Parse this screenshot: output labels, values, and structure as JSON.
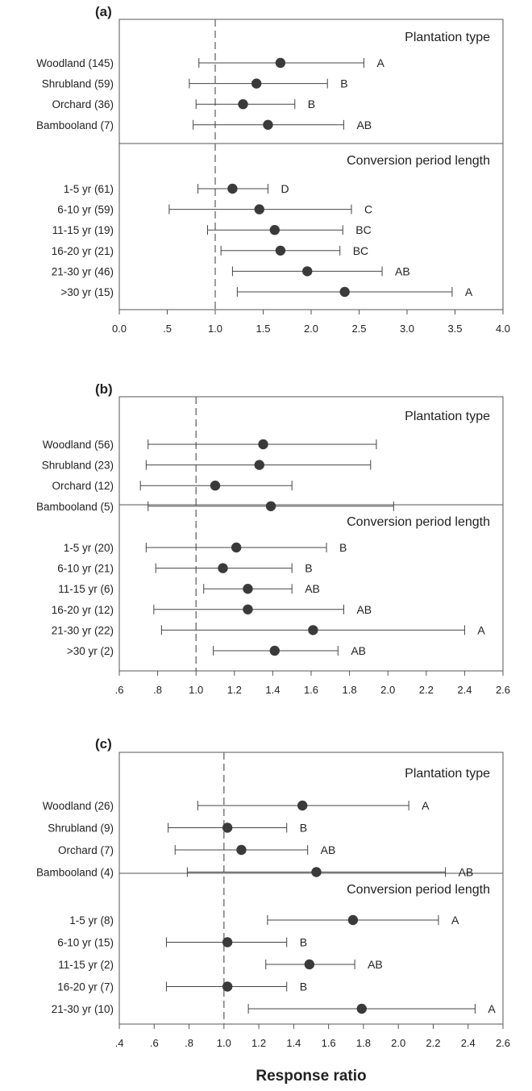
{
  "chart_data": [
    {
      "type": "scatter",
      "panel_label": "(a)",
      "xlim": [
        0.0,
        4.0
      ],
      "x_ticks": [
        "0.0",
        ".5",
        "1.0",
        "1.5",
        "2.0",
        "2.5",
        "3.0",
        "3.5",
        "4.0"
      ],
      "x_tick_values": [
        0.0,
        0.5,
        1.0,
        1.5,
        2.0,
        2.5,
        3.0,
        3.5,
        4.0
      ],
      "reference_line": 1.0,
      "groups": [
        {
          "title": "Plantation type",
          "items": [
            {
              "label": "Woodland (145)",
              "mean": 1.68,
              "lo": 0.83,
              "hi": 2.55,
              "letter": "A"
            },
            {
              "label": "Shrubland (59)",
              "mean": 1.43,
              "lo": 0.73,
              "hi": 2.17,
              "letter": "B"
            },
            {
              "label": "Orchard (36)",
              "mean": 1.29,
              "lo": 0.8,
              "hi": 1.83,
              "letter": "B"
            },
            {
              "label": "Bambooland (7)",
              "mean": 1.55,
              "lo": 0.77,
              "hi": 2.34,
              "letter": "AB"
            }
          ]
        },
        {
          "title": "Conversion period length",
          "items": [
            {
              "label": "1-5 yr (61)",
              "mean": 1.18,
              "lo": 0.82,
              "hi": 1.55,
              "letter": "D"
            },
            {
              "label": "6-10 yr (59)",
              "mean": 1.46,
              "lo": 0.52,
              "hi": 2.42,
              "letter": "C"
            },
            {
              "label": "11-15 yr (19)",
              "mean": 1.62,
              "lo": 0.92,
              "hi": 2.33,
              "letter": "BC"
            },
            {
              "label": "16-20 yr (21)",
              "mean": 1.68,
              "lo": 1.06,
              "hi": 2.3,
              "letter": "BC"
            },
            {
              "label": "21-30 yr (46)",
              "mean": 1.96,
              "lo": 1.18,
              "hi": 2.74,
              "letter": "AB"
            },
            {
              "label": ">30 yr (15)",
              "mean": 2.35,
              "lo": 1.23,
              "hi": 3.47,
              "letter": "A"
            }
          ]
        }
      ]
    },
    {
      "type": "scatter",
      "panel_label": "(b)",
      "xlim": [
        0.6,
        2.6
      ],
      "x_ticks": [
        ".6",
        ".8",
        "1.0",
        "1.2",
        "1.4",
        "1.6",
        "1.8",
        "2.0",
        "2.2",
        "2.4",
        "2.6"
      ],
      "x_tick_values": [
        0.6,
        0.8,
        1.0,
        1.2,
        1.4,
        1.6,
        1.8,
        2.0,
        2.2,
        2.4,
        2.6
      ],
      "reference_line": 1.0,
      "groups": [
        {
          "title": "Plantation type",
          "items": [
            {
              "label": "Woodland (56)",
              "mean": 1.35,
              "lo": 0.75,
              "hi": 1.94,
              "letter": ""
            },
            {
              "label": "Shrubland (23)",
              "mean": 1.33,
              "lo": 0.74,
              "hi": 1.91,
              "letter": ""
            },
            {
              "label": "Orchard (12)",
              "mean": 1.1,
              "lo": 0.71,
              "hi": 1.5,
              "letter": ""
            },
            {
              "label": "Bambooland (5)",
              "mean": 1.39,
              "lo": 0.75,
              "hi": 2.03,
              "letter": ""
            }
          ]
        },
        {
          "title": "Conversion period length",
          "items": [
            {
              "label": "1-5 yr (20)",
              "mean": 1.21,
              "lo": 0.74,
              "hi": 1.68,
              "letter": "B"
            },
            {
              "label": "6-10 yr (21)",
              "mean": 1.14,
              "lo": 0.79,
              "hi": 1.5,
              "letter": "B"
            },
            {
              "label": "11-15 yr (6)",
              "mean": 1.27,
              "lo": 1.04,
              "hi": 1.5,
              "letter": "AB"
            },
            {
              "label": "16-20 yr (12)",
              "mean": 1.27,
              "lo": 0.78,
              "hi": 1.77,
              "letter": "AB"
            },
            {
              "label": "21-30 yr (22)",
              "mean": 1.61,
              "lo": 0.82,
              "hi": 2.4,
              "letter": "A"
            },
            {
              "label": ">30 yr (2)",
              "mean": 1.41,
              "lo": 1.09,
              "hi": 1.74,
              "letter": "AB"
            }
          ]
        }
      ]
    },
    {
      "type": "scatter",
      "panel_label": "(c)",
      "xlim": [
        0.4,
        2.6
      ],
      "x_ticks": [
        ".4",
        ".6",
        ".8",
        "1.0",
        "1.2",
        "1.4",
        "1.6",
        "1.8",
        "2.0",
        "2.2",
        "2.4",
        "2.6"
      ],
      "x_tick_values": [
        0.4,
        0.6,
        0.8,
        1.0,
        1.2,
        1.4,
        1.6,
        1.8,
        2.0,
        2.2,
        2.4,
        2.6
      ],
      "reference_line": 1.0,
      "groups": [
        {
          "title": "Plantation type",
          "items": [
            {
              "label": "Woodland (26)",
              "mean": 1.45,
              "lo": 0.85,
              "hi": 2.06,
              "letter": "A"
            },
            {
              "label": "Shrubland (9)",
              "mean": 1.02,
              "lo": 0.68,
              "hi": 1.36,
              "letter": "B"
            },
            {
              "label": "Orchard (7)",
              "mean": 1.1,
              "lo": 0.72,
              "hi": 1.48,
              "letter": "AB"
            },
            {
              "label": "Bambooland (4)",
              "mean": 1.53,
              "lo": 0.79,
              "hi": 2.27,
              "letter": "AB"
            }
          ]
        },
        {
          "title": "Conversion period length",
          "items": [
            {
              "label": "1-5 yr (8)",
              "mean": 1.74,
              "lo": 1.25,
              "hi": 2.23,
              "letter": "A"
            },
            {
              "label": "6-10 yr (15)",
              "mean": 1.02,
              "lo": 0.67,
              "hi": 1.36,
              "letter": "B"
            },
            {
              "label": "11-15 yr (2)",
              "mean": 1.49,
              "lo": 1.24,
              "hi": 1.75,
              "letter": "AB"
            },
            {
              "label": "16-20 yr (7)",
              "mean": 1.02,
              "lo": 0.67,
              "hi": 1.36,
              "letter": "B"
            },
            {
              "label": "21-30 yr (10)",
              "mean": 1.79,
              "lo": 1.14,
              "hi": 2.44,
              "letter": "A"
            }
          ]
        }
      ]
    }
  ],
  "xlabel": "Response ratio",
  "colors": {
    "marker": "#3a3a3a",
    "line": "#444444",
    "frame": "#555555",
    "reference": "#666666"
  }
}
